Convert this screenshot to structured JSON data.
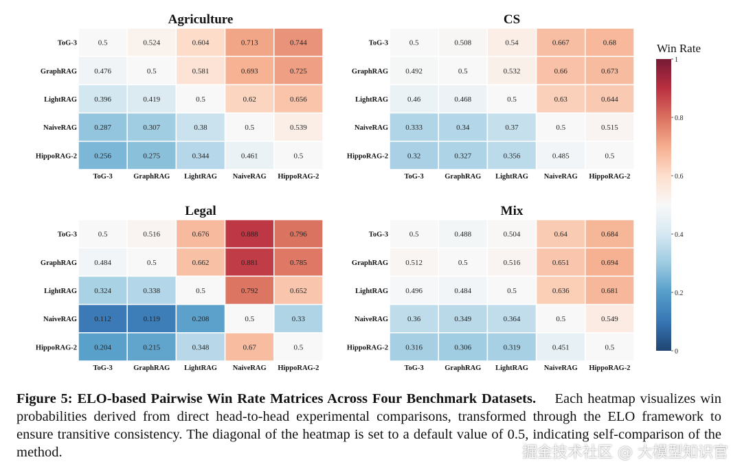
{
  "chart_data": [
    {
      "type": "heatmap",
      "title": "Agriculture",
      "rows": [
        "ToG-3",
        "GraphRAG",
        "LightRAG",
        "NaiveRAG",
        "HippoRAG-2"
      ],
      "columns": [
        "ToG-3",
        "GraphRAG",
        "LightRAG",
        "NaiveRAG",
        "HippoRAG-2"
      ],
      "values": [
        [
          0.5,
          0.524,
          0.604,
          0.713,
          0.744
        ],
        [
          0.476,
          0.5,
          0.581,
          0.693,
          0.725
        ],
        [
          0.396,
          0.419,
          0.5,
          0.62,
          0.656
        ],
        [
          0.287,
          0.307,
          0.38,
          0.5,
          0.539
        ],
        [
          0.256,
          0.275,
          0.344,
          0.461,
          0.5
        ]
      ],
      "value_labels": [
        [
          "0.5",
          "0.524",
          "0.604",
          "0.713",
          "0.744"
        ],
        [
          "0.476",
          "0.5",
          "0.581",
          "0.693",
          "0.725"
        ],
        [
          "0.396",
          "0.419",
          "0.5",
          "0.62",
          "0.656"
        ],
        [
          "0.287",
          "0.307",
          "0.38",
          "0.5",
          "0.539"
        ],
        [
          "0.256",
          "0.275",
          "0.344",
          "0.461",
          "0.5"
        ]
      ]
    },
    {
      "type": "heatmap",
      "title": "CS",
      "rows": [
        "ToG-3",
        "GraphRAG",
        "LightRAG",
        "NaiveRAG",
        "HippoRAG-2"
      ],
      "columns": [
        "ToG-3",
        "GraphRAG",
        "LightRAG",
        "NaiveRAG",
        "HippoRAG-2"
      ],
      "values": [
        [
          0.5,
          0.508,
          0.54,
          0.667,
          0.68
        ],
        [
          0.492,
          0.5,
          0.532,
          0.66,
          0.673
        ],
        [
          0.46,
          0.468,
          0.5,
          0.63,
          0.644
        ],
        [
          0.333,
          0.34,
          0.37,
          0.5,
          0.515
        ],
        [
          0.32,
          0.327,
          0.356,
          0.485,
          0.5
        ]
      ],
      "value_labels": [
        [
          "0.5",
          "0.508",
          "0.54",
          "0.667",
          "0.68"
        ],
        [
          "0.492",
          "0.5",
          "0.532",
          "0.66",
          "0.673"
        ],
        [
          "0.46",
          "0.468",
          "0.5",
          "0.63",
          "0.644"
        ],
        [
          "0.333",
          "0.34",
          "0.37",
          "0.5",
          "0.515"
        ],
        [
          "0.32",
          "0.327",
          "0.356",
          "0.485",
          "0.5"
        ]
      ]
    },
    {
      "type": "heatmap",
      "title": "Legal",
      "rows": [
        "ToG-3",
        "GraphRAG",
        "LightRAG",
        "NaiveRAG",
        "HippoRAG-2"
      ],
      "columns": [
        "ToG-3",
        "GraphRAG",
        "LightRAG",
        "NaiveRAG",
        "HippoRAG-2"
      ],
      "values": [
        [
          0.5,
          0.516,
          0.676,
          0.888,
          0.796
        ],
        [
          0.484,
          0.5,
          0.662,
          0.881,
          0.785
        ],
        [
          0.324,
          0.338,
          0.5,
          0.792,
          0.652
        ],
        [
          0.112,
          0.119,
          0.208,
          0.5,
          0.33
        ],
        [
          0.204,
          0.215,
          0.348,
          0.67,
          0.5
        ]
      ],
      "value_labels": [
        [
          "0.5",
          "0.516",
          "0.676",
          "0.888",
          "0.796"
        ],
        [
          "0.484",
          "0.5",
          "0.662",
          "0.881",
          "0.785"
        ],
        [
          "0.324",
          "0.338",
          "0.5",
          "0.792",
          "0.652"
        ],
        [
          "0.112",
          "0.119",
          "0.208",
          "0.5",
          "0.33"
        ],
        [
          "0.204",
          "0.215",
          "0.348",
          "0.67",
          "0.5"
        ]
      ]
    },
    {
      "type": "heatmap",
      "title": "Mix",
      "rows": [
        "ToG-3",
        "GraphRAG",
        "LightRAG",
        "NaiveRAG",
        "HippoRAG-2"
      ],
      "columns": [
        "ToG-3",
        "GraphRAG",
        "LightRAG",
        "NaiveRAG",
        "HippoRAG-2"
      ],
      "values": [
        [
          0.5,
          0.488,
          0.504,
          0.64,
          0.684
        ],
        [
          0.512,
          0.5,
          0.516,
          0.651,
          0.694
        ],
        [
          0.496,
          0.484,
          0.5,
          0.636,
          0.681
        ],
        [
          0.36,
          0.349,
          0.364,
          0.5,
          0.549
        ],
        [
          0.316,
          0.306,
          0.319,
          0.451,
          0.5
        ]
      ],
      "value_labels": [
        [
          "0.5",
          "0.488",
          "0.504",
          "0.64",
          "0.684"
        ],
        [
          "0.512",
          "0.5",
          "0.516",
          "0.651",
          "0.694"
        ],
        [
          "0.496",
          "0.484",
          "0.5",
          "0.636",
          "0.681"
        ],
        [
          "0.36",
          "0.349",
          "0.364",
          "0.5",
          "0.549"
        ],
        [
          "0.316",
          "0.306",
          "0.319",
          "0.451",
          "0.5"
        ]
      ]
    }
  ],
  "colorbar": {
    "label": "Win Rate",
    "colormap": "RdBu_r",
    "range": [
      0,
      1
    ],
    "ticks": [
      "0",
      "0.2",
      "0.4",
      "0.6",
      "0.8",
      "1"
    ],
    "colors": [
      "#053061",
      "#2166ac",
      "#4393c3",
      "#92c5de",
      "#d1e5f0",
      "#f7f7f7",
      "#fddbc7",
      "#f4a582",
      "#d6604d",
      "#b2182b",
      "#67001f"
    ]
  },
  "caption": {
    "label": "Figure 5: ELO-based Pairwise Win Rate Matrices Across Four Benchmark Datasets.",
    "text": "Each heatmap visualizes win probabilities derived from direct head-to-head experimental comparisons, transformed through the ELO framework to ensure transitive consistency. The diagonal of the heatmap is set to a default value of 0.5, indicating self-comparison of the method."
  },
  "watermark": "掘金技术社区 @ 大模型知识官"
}
